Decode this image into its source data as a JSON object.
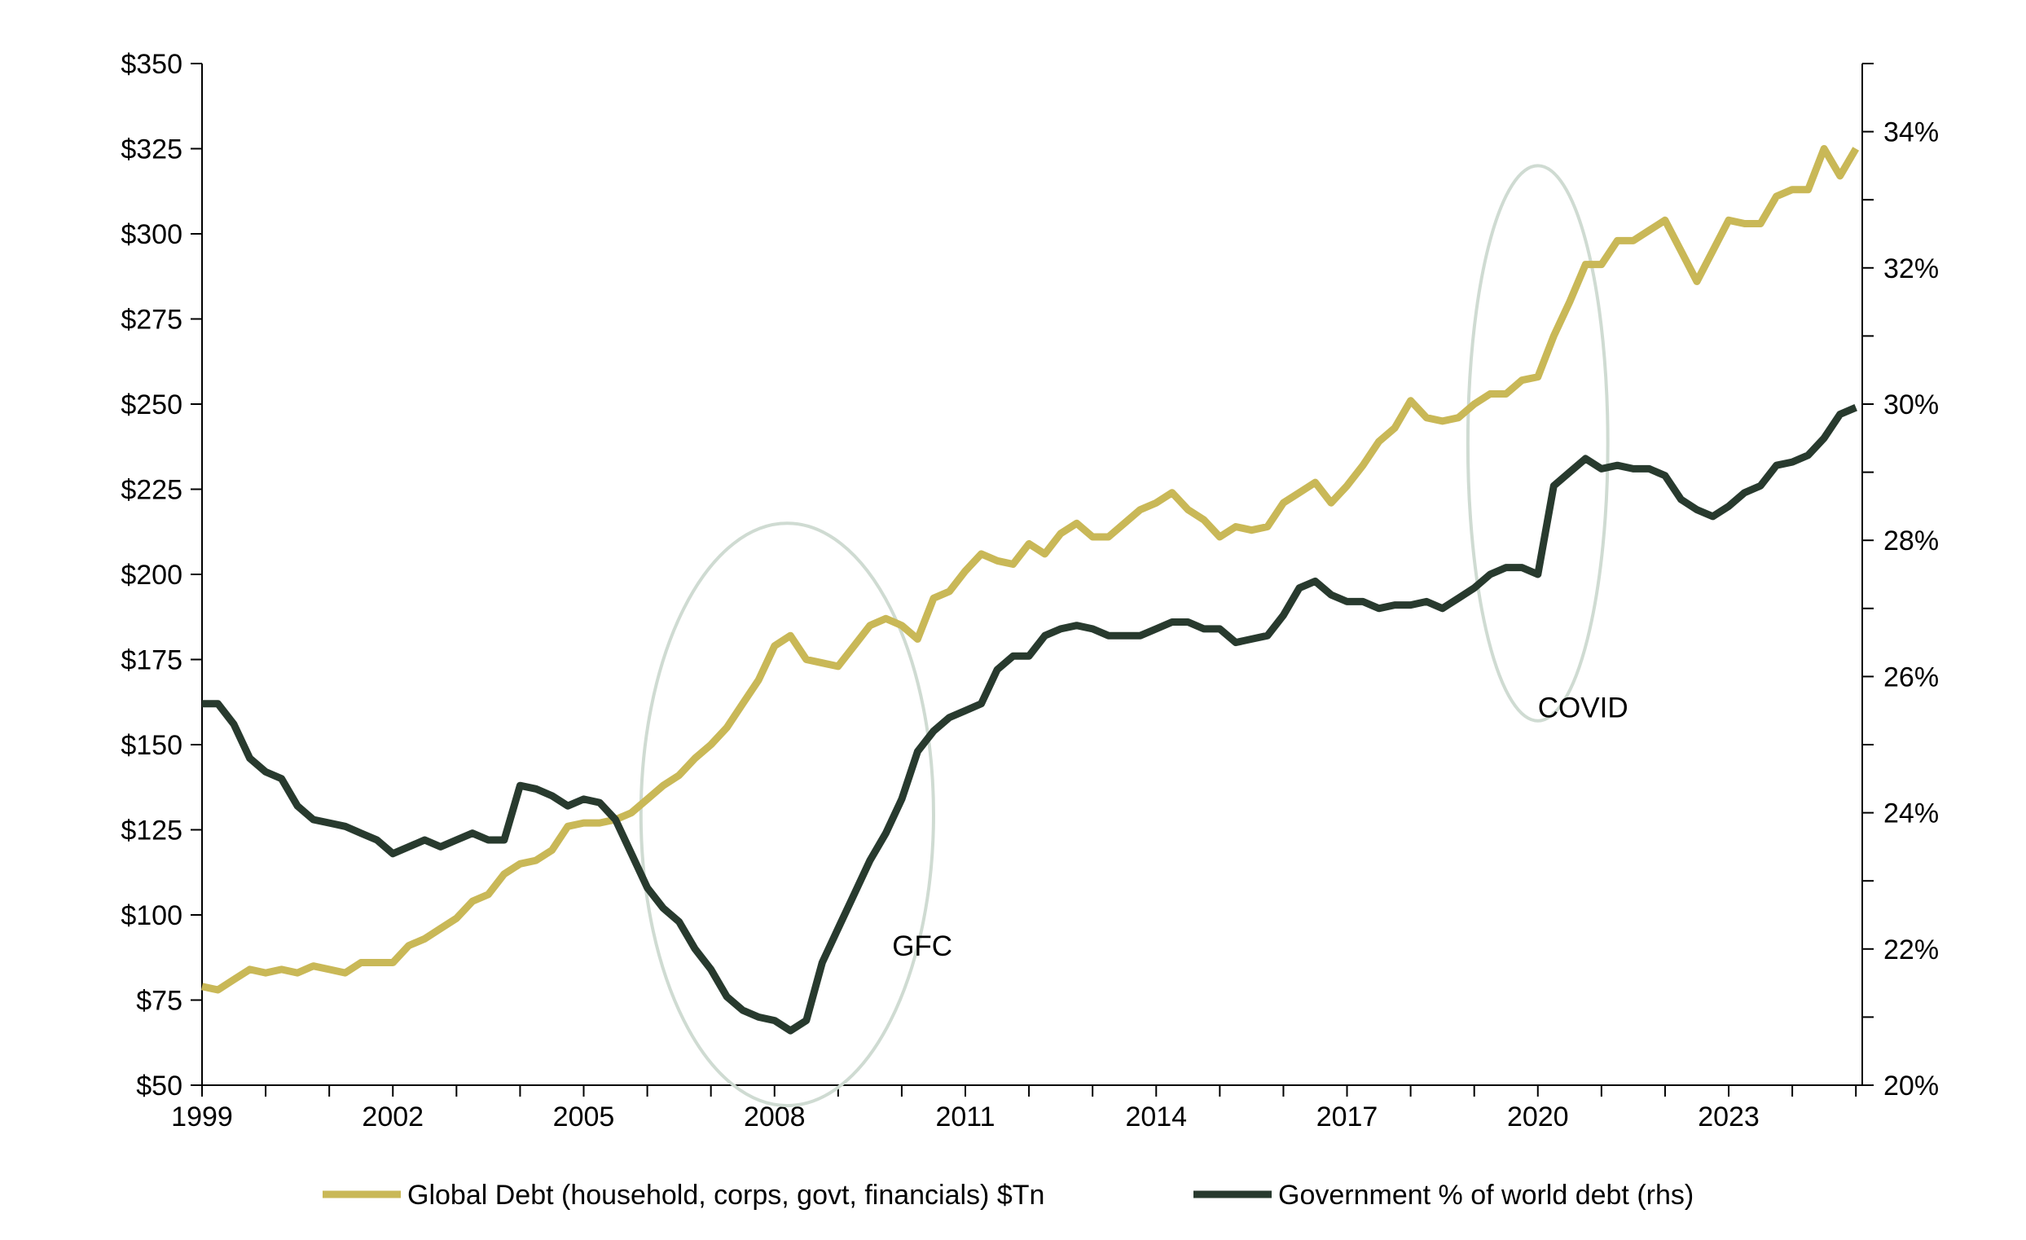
{
  "chart_data": {
    "type": "line",
    "title": "",
    "xlabel": "",
    "ylabel": "",
    "y2label": "",
    "x_ticks": [
      "1999",
      "2002",
      "2005",
      "2008",
      "2011",
      "2014",
      "2017",
      "2020",
      "2023"
    ],
    "xlim": [
      1999,
      2025.1
    ],
    "ylim": [
      50,
      350
    ],
    "y_ticks": [
      "$50",
      "$75",
      "$100",
      "$125",
      "$150",
      "$175",
      "$200",
      "$225",
      "$250",
      "$275",
      "$300",
      "$325",
      "$350"
    ],
    "y2lim": [
      20,
      35
    ],
    "y2_ticks": [
      "20%",
      "22%",
      "24%",
      "26%",
      "28%",
      "30%",
      "32%",
      "34%"
    ],
    "grid": false,
    "legend_position": "bottom",
    "series": [
      {
        "name": "Global Debt (household, corps, govt, financials) $Tn",
        "axis": "left",
        "color": "#c9b857",
        "x": [
          1999.0,
          1999.25,
          1999.5,
          1999.75,
          2000.0,
          2000.25,
          2000.5,
          2000.75,
          2001.0,
          2001.25,
          2001.5,
          2001.75,
          2002.0,
          2002.25,
          2002.5,
          2002.75,
          2003.0,
          2003.25,
          2003.5,
          2003.75,
          2004.0,
          2004.25,
          2004.5,
          2004.75,
          2005.0,
          2005.25,
          2005.5,
          2005.75,
          2006.0,
          2006.25,
          2006.5,
          2006.75,
          2007.0,
          2007.25,
          2007.5,
          2007.75,
          2008.0,
          2008.25,
          2008.5,
          2008.75,
          2009.0,
          2009.25,
          2009.5,
          2009.75,
          2010.0,
          2010.25,
          2010.5,
          2010.75,
          2011.0,
          2011.25,
          2011.5,
          2011.75,
          2012.0,
          2012.25,
          2012.5,
          2012.75,
          2013.0,
          2013.25,
          2013.5,
          2013.75,
          2014.0,
          2014.25,
          2014.5,
          2014.75,
          2015.0,
          2015.25,
          2015.5,
          2015.75,
          2016.0,
          2016.25,
          2016.5,
          2016.75,
          2017.0,
          2017.25,
          2017.5,
          2017.75,
          2018.0,
          2018.25,
          2018.5,
          2018.75,
          2019.0,
          2019.25,
          2019.5,
          2019.75,
          2020.0,
          2020.25,
          2020.5,
          2020.75,
          2021.0,
          2021.25,
          2021.5,
          2021.75,
          2022.0,
          2022.25,
          2022.5,
          2022.75,
          2023.0,
          2023.25,
          2023.5,
          2023.75,
          2024.0,
          2024.25,
          2024.5,
          2024.75,
          2025.0
        ],
        "values": [
          79,
          78,
          81,
          84,
          83,
          84,
          83,
          85,
          84,
          83,
          86,
          86,
          86,
          91,
          93,
          96,
          99,
          104,
          106,
          112,
          115,
          116,
          119,
          126,
          127,
          127,
          128,
          130,
          134,
          138,
          141,
          146,
          150,
          155,
          162,
          169,
          179,
          182,
          175,
          174,
          173,
          179,
          185,
          187,
          185,
          181,
          193,
          195,
          201,
          206,
          204,
          203,
          209,
          206,
          212,
          215,
          211,
          211,
          215,
          219,
          221,
          224,
          219,
          216,
          211,
          214,
          213,
          214,
          221,
          224,
          227,
          221,
          226,
          232,
          239,
          243,
          251,
          246,
          245,
          246,
          250,
          253,
          253,
          257,
          258,
          270,
          280,
          291,
          291,
          298,
          298,
          301,
          304,
          295,
          286,
          295,
          304,
          303,
          303,
          311,
          313,
          313,
          325,
          317,
          325
        ]
      },
      {
        "name": "Government % of world debt (rhs)",
        "axis": "right",
        "color": "#283a2e",
        "x": [
          1999.0,
          1999.25,
          1999.5,
          1999.75,
          2000.0,
          2000.25,
          2000.5,
          2000.75,
          2001.0,
          2001.25,
          2001.5,
          2001.75,
          2002.0,
          2002.25,
          2002.5,
          2002.75,
          2003.0,
          2003.25,
          2003.5,
          2003.75,
          2004.0,
          2004.25,
          2004.5,
          2004.75,
          2005.0,
          2005.25,
          2005.5,
          2005.75,
          2006.0,
          2006.25,
          2006.5,
          2006.75,
          2007.0,
          2007.25,
          2007.5,
          2007.75,
          2008.0,
          2008.25,
          2008.5,
          2008.75,
          2009.0,
          2009.25,
          2009.5,
          2009.75,
          2010.0,
          2010.25,
          2010.5,
          2010.75,
          2011.0,
          2011.25,
          2011.5,
          2011.75,
          2012.0,
          2012.25,
          2012.5,
          2012.75,
          2013.0,
          2013.25,
          2013.5,
          2013.75,
          2014.0,
          2014.25,
          2014.5,
          2014.75,
          2015.0,
          2015.25,
          2015.5,
          2015.75,
          2016.0,
          2016.25,
          2016.5,
          2016.75,
          2017.0,
          2017.25,
          2017.5,
          2017.75,
          2018.0,
          2018.25,
          2018.5,
          2018.75,
          2019.0,
          2019.25,
          2019.5,
          2019.75,
          2020.0,
          2020.25,
          2020.5,
          2020.75,
          2021.0,
          2021.25,
          2021.5,
          2021.75,
          2022.0,
          2022.25,
          2022.5,
          2022.75,
          2023.0,
          2023.25,
          2023.5,
          2023.75,
          2024.0,
          2024.25,
          2024.5,
          2024.75,
          2025.0
        ],
        "values": [
          25.6,
          25.6,
          25.3,
          24.8,
          24.6,
          24.5,
          24.1,
          23.9,
          23.85,
          23.8,
          23.7,
          23.6,
          23.4,
          23.5,
          23.6,
          23.5,
          23.6,
          23.7,
          23.6,
          23.6,
          24.4,
          24.35,
          24.25,
          24.1,
          24.2,
          24.15,
          23.9,
          23.4,
          22.9,
          22.6,
          22.4,
          22.0,
          21.7,
          21.3,
          21.1,
          21.0,
          20.95,
          20.8,
          20.95,
          21.8,
          22.3,
          22.8,
          23.3,
          23.7,
          24.2,
          24.9,
          25.2,
          25.4,
          25.5,
          25.6,
          26.1,
          26.3,
          26.3,
          26.6,
          26.7,
          26.75,
          26.7,
          26.6,
          26.6,
          26.6,
          26.7,
          26.8,
          26.8,
          26.7,
          26.7,
          26.5,
          26.55,
          26.6,
          26.9,
          27.3,
          27.4,
          27.2,
          27.1,
          27.1,
          27.0,
          27.05,
          27.05,
          27.1,
          27.0,
          27.15,
          27.3,
          27.5,
          27.6,
          27.6,
          27.5,
          28.8,
          29.0,
          29.2,
          29.05,
          29.1,
          29.05,
          29.05,
          28.95,
          28.6,
          28.45,
          28.35,
          28.5,
          28.7,
          28.8,
          29.1,
          29.15,
          29.25,
          29.5,
          29.85,
          29.95
        ]
      }
    ],
    "annotations": [
      {
        "label": "GFC",
        "x": 2009.85,
        "y": 21.9,
        "axis": "right",
        "ellipse_x_range": [
          2005.9,
          2010.5
        ],
        "ellipse_y_range": [
          44,
          215
        ]
      },
      {
        "label": "COVID",
        "x": 2020.0,
        "y": 25.4,
        "axis": "right",
        "ellipse_x_range": [
          2018.9,
          2021.1
        ],
        "ellipse_y_range": [
          157,
          320
        ]
      }
    ]
  }
}
